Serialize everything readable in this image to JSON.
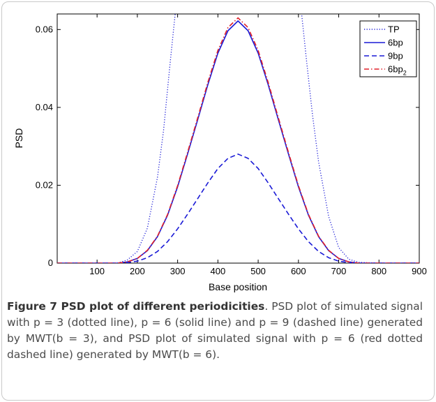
{
  "chart_data": {
    "type": "line",
    "xlabel": "Base position",
    "ylabel": "PSD",
    "xlim": [
      1,
      900
    ],
    "ylim": [
      0,
      0.064
    ],
    "xticks": [
      100,
      200,
      300,
      400,
      500,
      600,
      700,
      800,
      900
    ],
    "yticks": [
      0,
      0.02,
      0.04,
      0.06
    ],
    "ytick_labels": [
      "0",
      "0.02",
      "0.04",
      "0.06"
    ],
    "legend_position": "top-right",
    "series": [
      {
        "name": "TP",
        "style": "dotted",
        "color": "#1a1ad6",
        "x": [
          1,
          150,
          175,
          200,
          225,
          250,
          265,
          280,
          290,
          300,
          600,
          608,
          620,
          635,
          650,
          675,
          700,
          725,
          750,
          800,
          900
        ],
        "y": [
          0,
          0.0,
          0.0008,
          0.003,
          0.009,
          0.022,
          0.034,
          0.05,
          0.06,
          0.07,
          0.07,
          0.064,
          0.052,
          0.038,
          0.026,
          0.012,
          0.004,
          0.001,
          0.0002,
          0,
          0
        ]
      },
      {
        "name": "6bp",
        "style": "solid",
        "color": "#1a1ad6",
        "x": [
          1,
          150,
          175,
          200,
          225,
          250,
          275,
          300,
          325,
          350,
          375,
          400,
          425,
          450,
          475,
          500,
          525,
          550,
          575,
          600,
          625,
          650,
          675,
          700,
          725,
          750,
          800,
          900
        ],
        "y": [
          0,
          0.0,
          0.0003,
          0.0012,
          0.0032,
          0.0068,
          0.0123,
          0.0196,
          0.0281,
          0.0369,
          0.0458,
          0.0539,
          0.0597,
          0.0622,
          0.0597,
          0.0539,
          0.0458,
          0.0369,
          0.0281,
          0.0196,
          0.0123,
          0.0068,
          0.0032,
          0.0012,
          0.0003,
          0.0,
          0,
          0
        ]
      },
      {
        "name": "9bp",
        "style": "dashed",
        "color": "#1a1ad6",
        "x": [
          1,
          150,
          175,
          200,
          225,
          250,
          275,
          300,
          325,
          350,
          375,
          400,
          425,
          450,
          475,
          500,
          525,
          550,
          575,
          600,
          625,
          650,
          675,
          700,
          725,
          750,
          800,
          900
        ],
        "y": [
          0,
          0.0,
          0.00013,
          0.0005,
          0.0014,
          0.003,
          0.0055,
          0.0088,
          0.0126,
          0.0166,
          0.0206,
          0.0243,
          0.0269,
          0.028,
          0.0269,
          0.0243,
          0.0206,
          0.0166,
          0.0126,
          0.0088,
          0.0055,
          0.003,
          0.0014,
          0.0005,
          0.00013,
          0.0,
          0,
          0
        ]
      },
      {
        "name": "6bp₂",
        "legend_main": "6bp",
        "legend_sub": "2",
        "style": "dashdot",
        "color": "#e0202a",
        "x": [
          1,
          150,
          175,
          200,
          225,
          250,
          275,
          300,
          325,
          350,
          375,
          400,
          425,
          450,
          475,
          500,
          525,
          550,
          575,
          600,
          625,
          650,
          675,
          700,
          725,
          750,
          800,
          900
        ],
        "y": [
          0,
          0.0,
          0.0003,
          0.0012,
          0.0033,
          0.0069,
          0.0125,
          0.0199,
          0.0285,
          0.0374,
          0.0464,
          0.0546,
          0.0605,
          0.063,
          0.0605,
          0.0546,
          0.0464,
          0.0374,
          0.0285,
          0.0199,
          0.0125,
          0.0069,
          0.0033,
          0.0012,
          0.0003,
          0.0,
          0,
          0
        ]
      }
    ]
  },
  "caption": {
    "title": "Figure 7 PSD plot of different periodicities",
    "text": ". PSD plot of simulated signal with p = 3 (dotted line), p = 6 (solid line) and p = 9 (dashed line) generated by MWT(b = 3), and PSD plot of simulated signal with p = 6 (red dotted dashed line) generated by MWT(b = 6)."
  }
}
